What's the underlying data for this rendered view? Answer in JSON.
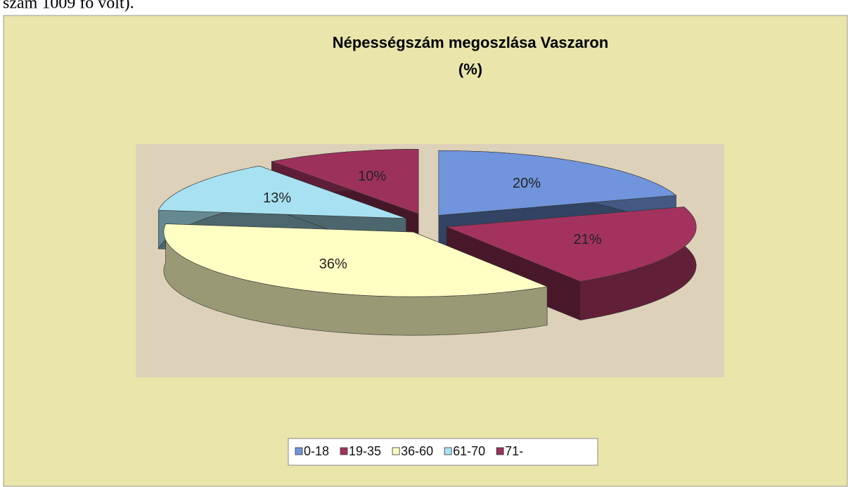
{
  "preceding_text": "szám 1009 fő volt).",
  "chart_data": {
    "type": "pie",
    "title": "Népességszám megoszlása Vaszaron",
    "subtitle": "(%)",
    "categories": [
      "0-18",
      "19-35",
      "36-60",
      "61-70",
      "71-"
    ],
    "values": [
      20,
      21,
      36,
      13,
      10
    ],
    "value_labels": [
      "20%",
      "21%",
      "36%",
      "13%",
      "10%"
    ],
    "colors": [
      "#7095dc",
      "#a3335e",
      "#ffffc4",
      "#a8e2f2",
      "#9c325c"
    ],
    "legend": "bottom"
  }
}
